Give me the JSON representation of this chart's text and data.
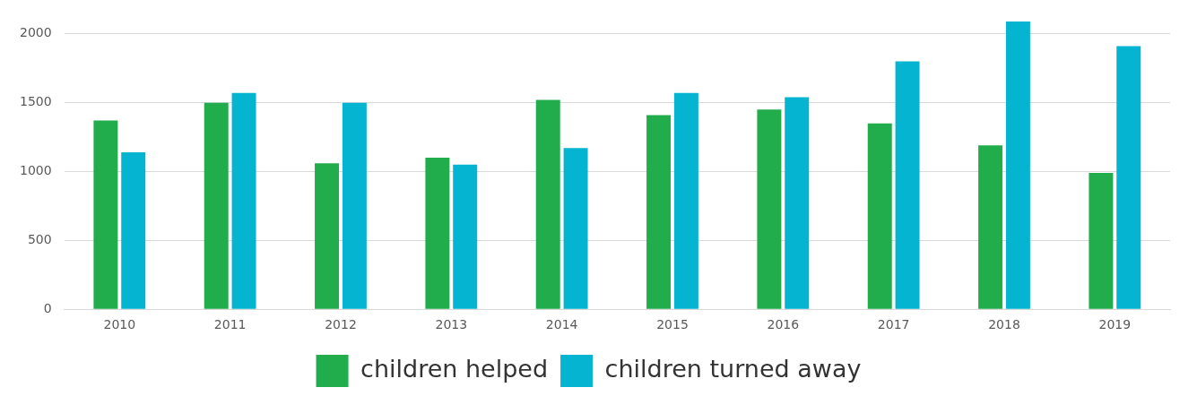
{
  "chart_data": {
    "type": "bar",
    "categories": [
      "2010",
      "2011",
      "2012",
      "2013",
      "2014",
      "2015",
      "2016",
      "2017",
      "2018",
      "2019"
    ],
    "series": [
      {
        "name": "children helped",
        "color": "#22ad4c",
        "values": [
          1370,
          1500,
          1060,
          1100,
          1520,
          1410,
          1450,
          1350,
          1190,
          990
        ]
      },
      {
        "name": "children turned away",
        "color": "#05b4d0",
        "values": [
          1140,
          1570,
          1500,
          1050,
          1170,
          1570,
          1540,
          1800,
          2090,
          1910
        ]
      }
    ],
    "ylim": [
      0,
      2100
    ],
    "yticks": [
      0,
      500,
      1000,
      1500,
      2000
    ],
    "grid": "y",
    "legend": "bottom"
  }
}
